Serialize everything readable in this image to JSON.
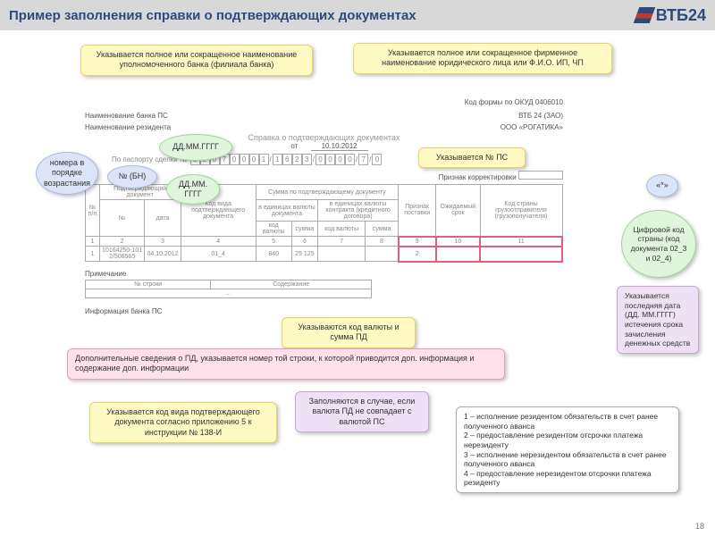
{
  "header": {
    "title": "Пример заполнения справки о подтверждающих документах",
    "logo": "ВТБ24"
  },
  "doc": {
    "bank_label": "Наименование банка ПС",
    "bank_value": "ВТБ 24 (ЗАО)",
    "resident_label": "Наименование резидента",
    "resident_value": "ООО «РОГАТИКА»",
    "okud": "Код формы по ОКУД 0406010",
    "title": "Справка о подтверждающих документах",
    "date_label": "от",
    "date_value": "10.10.2012",
    "passport_label": "По паспорту сделки №",
    "passport_cells": [
      "1",
      "2",
      "0",
      "7",
      "0",
      "0",
      "0",
      "1",
      "/",
      "1",
      "6",
      "2",
      "3",
      "/",
      "0",
      "0",
      "0",
      "0",
      "/",
      "7",
      "/",
      "0"
    ],
    "recalc_label": "Признак корректировки",
    "table": {
      "head1": [
        "№ п/п",
        "Подтверждающий документ",
        "Код вида подтверждающего документа",
        "Сумма по подтверждающему документу",
        "",
        "",
        "",
        "Признак поставки",
        "Ожидаемый срок",
        "Код страны грузоотправителя (грузополучателя)"
      ],
      "head2": [
        "",
        "№",
        "дата",
        "",
        "в единицах валюты документа",
        "",
        "в единицах валюты контракта (кредитного договора)",
        "",
        "",
        "",
        ""
      ],
      "head3": [
        "",
        "",
        "",
        "",
        "код валюты",
        "сумма",
        "код валюты",
        "сумма",
        "",
        "",
        ""
      ],
      "nums": [
        "1",
        "2",
        "3",
        "4",
        "5",
        "6",
        "7",
        "8",
        "9",
        "10",
        "11"
      ],
      "row": [
        "1",
        "10164250-101 2/506565",
        "04.10.2012",
        "01_4",
        "840",
        "25 125",
        "",
        "",
        "2",
        "",
        ""
      ]
    },
    "note_label": "Примечание",
    "footer_rows": [
      "№ строки",
      "Содержание",
      "…"
    ],
    "info_label": "Информация банка ПС"
  },
  "annot": {
    "a1": "Указывается полное или сокращенное наименование уполномоченного банка (филиала банка)",
    "a2": "Указывается полное или сокращенное фирменное наименование юридического лица или Ф.И.О. ИП, ЧП",
    "a3": "номера в порядке возрастания",
    "a4": "ДД.ММ.ГГГГ",
    "a5": "№ (БН)",
    "a6": "ДД.ММ. ГГГГ",
    "a7": "Указывается № ПС",
    "a8": "«*»",
    "a9": "Цифровой код страны (код документа 02_3 и 02_4)",
    "a10": "Указывается последняя дата (ДД. ММ.ГГГГ) истечения срока зачисления денежных средств",
    "a11": "Указываются код валюты и сумма ПД",
    "a12": "Дополнительные сведения о ПД, указывается номер той строки, к которой приводится доп. информация и содержание доп. информации",
    "a13": "Указывается код вида подтверждающего документа согласно приложению 5 к инструкции № 138-И",
    "a14": "Заполняются в случае, если валюта ПД не совпадает с валютой ПС",
    "a15": "1 – исполнение резидентом обязательств в счет ранее полученного аванса\n2 – предоставление резидентом отсрочки платежа нерезиденту\n3 – исполнение нерезидентом обязательств в счет ранее полученного аванса\n4 – предоставление нерезидентом отсрочки платежа резиденту"
  },
  "page": "18"
}
